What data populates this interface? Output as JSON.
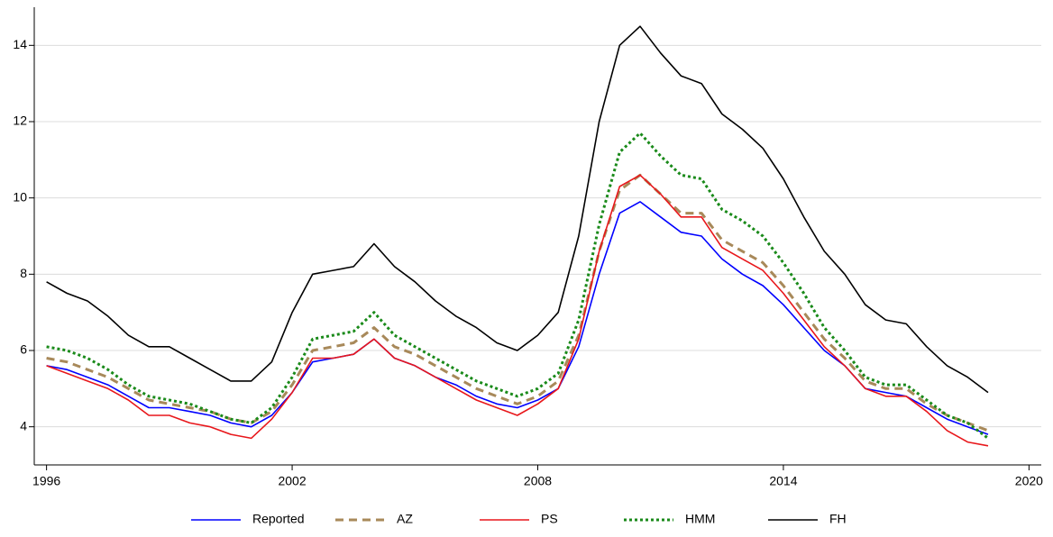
{
  "chart_data": {
    "type": "line",
    "x": [
      1996,
      1996.5,
      1997,
      1997.5,
      1998,
      1998.5,
      1999,
      1999.5,
      2000,
      2000.5,
      2001,
      2001.5,
      2002,
      2002.5,
      2003,
      2003.5,
      2004,
      2004.5,
      2005,
      2005.5,
      2006,
      2006.5,
      2007,
      2007.5,
      2008,
      2008.5,
      2009,
      2009.5,
      2010,
      2010.5,
      2011,
      2011.5,
      2012,
      2012.5,
      2013,
      2013.5,
      2014,
      2014.5,
      2015,
      2015.5,
      2016,
      2016.5,
      2017,
      2017.5,
      2018,
      2018.5,
      2019
    ],
    "series": [
      {
        "name": "Reported",
        "color": "#0000ff",
        "dash": "solid",
        "values": [
          5.6,
          5.5,
          5.3,
          5.1,
          4.8,
          4.5,
          4.5,
          4.4,
          4.3,
          4.1,
          4.0,
          4.3,
          4.9,
          5.7,
          5.8,
          5.9,
          6.3,
          5.8,
          5.6,
          5.3,
          5.1,
          4.8,
          4.6,
          4.5,
          4.7,
          5.0,
          6.1,
          8.0,
          9.6,
          9.9,
          9.5,
          9.1,
          9.0,
          8.4,
          8.0,
          7.7,
          7.2,
          6.6,
          6.0,
          5.6,
          5.0,
          4.9,
          4.8,
          4.5,
          4.2,
          4.0,
          3.8
        ]
      },
      {
        "name": "AZ",
        "color": "#a8895a",
        "dash": "dashed",
        "values": [
          5.8,
          5.7,
          5.5,
          5.3,
          5.0,
          4.7,
          4.6,
          4.5,
          4.4,
          4.2,
          4.1,
          4.4,
          5.1,
          6.0,
          6.1,
          6.2,
          6.6,
          6.1,
          5.9,
          5.6,
          5.3,
          5.0,
          4.8,
          4.6,
          4.8,
          5.2,
          6.4,
          8.6,
          10.2,
          10.6,
          10.1,
          9.6,
          9.6,
          8.9,
          8.6,
          8.3,
          7.7,
          7.0,
          6.3,
          5.8,
          5.2,
          5.0,
          5.0,
          4.6,
          4.3,
          4.1,
          3.9
        ]
      },
      {
        "name": "PS",
        "color": "#e8171b",
        "dash": "solid",
        "values": [
          5.6,
          5.4,
          5.2,
          5.0,
          4.7,
          4.3,
          4.3,
          4.1,
          4.0,
          3.8,
          3.7,
          4.2,
          4.9,
          5.8,
          5.8,
          5.9,
          6.3,
          5.8,
          5.6,
          5.3,
          5.0,
          4.7,
          4.5,
          4.3,
          4.6,
          5.0,
          6.3,
          8.6,
          10.3,
          10.6,
          10.1,
          9.5,
          9.5,
          8.7,
          8.4,
          8.1,
          7.5,
          6.8,
          6.1,
          5.6,
          5.0,
          4.8,
          4.8,
          4.4,
          3.9,
          3.6,
          3.5
        ]
      },
      {
        "name": "HMM",
        "color": "#1a8a1a",
        "dash": "dotted",
        "values": [
          6.1,
          6.0,
          5.8,
          5.5,
          5.1,
          4.8,
          4.7,
          4.6,
          4.4,
          4.2,
          4.1,
          4.5,
          5.3,
          6.3,
          6.4,
          6.5,
          7.0,
          6.4,
          6.1,
          5.8,
          5.5,
          5.2,
          5.0,
          4.8,
          5.0,
          5.4,
          6.8,
          9.3,
          11.2,
          11.7,
          11.1,
          10.6,
          10.5,
          9.7,
          9.4,
          9.0,
          8.3,
          7.5,
          6.6,
          6.0,
          5.3,
          5.1,
          5.1,
          4.7,
          4.3,
          4.1,
          3.7
        ]
      },
      {
        "name": "FH",
        "color": "#000000",
        "dash": "solid",
        "values": [
          7.8,
          7.5,
          7.3,
          6.9,
          6.4,
          6.1,
          6.1,
          5.8,
          5.5,
          5.2,
          5.2,
          5.7,
          7.0,
          8.0,
          8.1,
          8.2,
          8.8,
          8.2,
          7.8,
          7.3,
          6.9,
          6.6,
          6.2,
          6.0,
          6.4,
          7.0,
          9.0,
          12.0,
          14.0,
          14.5,
          13.8,
          13.2,
          13.0,
          12.2,
          11.8,
          11.3,
          10.5,
          9.5,
          8.6,
          8.0,
          7.2,
          6.8,
          6.7,
          6.1,
          5.6,
          5.3,
          4.9
        ]
      }
    ],
    "xlim": [
      1995.7,
      2020.3
    ],
    "xticks": [
      1996,
      2002,
      2008,
      2014,
      2020
    ],
    "ylim": [
      3,
      15
    ],
    "yticks": [
      4,
      6,
      8,
      10,
      12,
      14
    ],
    "grid": true,
    "legend": "bottom"
  }
}
